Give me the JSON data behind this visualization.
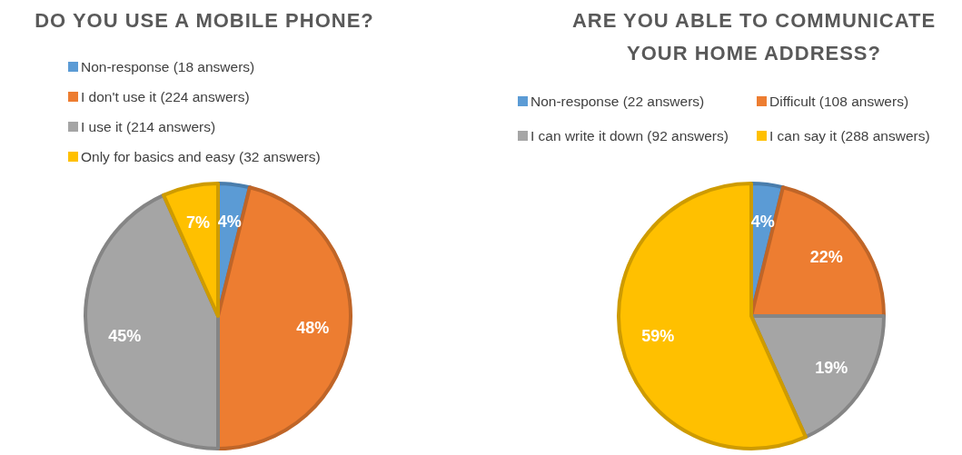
{
  "chart_data": [
    {
      "type": "pie",
      "title": "DO YOU USE A MOBILE PHONE?",
      "categories": [
        "Non-response (18 answers)",
        "I don't use it (224 answers)",
        "I use it (214 answers)",
        "Only for basics and easy (32 answers)"
      ],
      "values": [
        4,
        48,
        45,
        7
      ],
      "value_labels": [
        "4%",
        "48%",
        "45%",
        "7%"
      ],
      "colors": [
        "#5b9bd5",
        "#ed7d31",
        "#a5a5a5",
        "#ffc000"
      ],
      "legend": "top"
    },
    {
      "type": "pie",
      "title": "ARE YOU ABLE TO COMMUNICATE YOUR HOME ADDRESS?",
      "categories": [
        "Non-response (22 answers)",
        "Difficult (108 answers)",
        "I can write it down (92 answers)",
        "I can say it (288 answers)"
      ],
      "values": [
        4,
        22,
        19,
        59
      ],
      "value_labels": [
        "4%",
        "22%",
        "19%",
        "59%"
      ],
      "colors": [
        "#5b9bd5",
        "#ed7d31",
        "#a5a5a5",
        "#ffc000"
      ],
      "legend": "top"
    }
  ]
}
